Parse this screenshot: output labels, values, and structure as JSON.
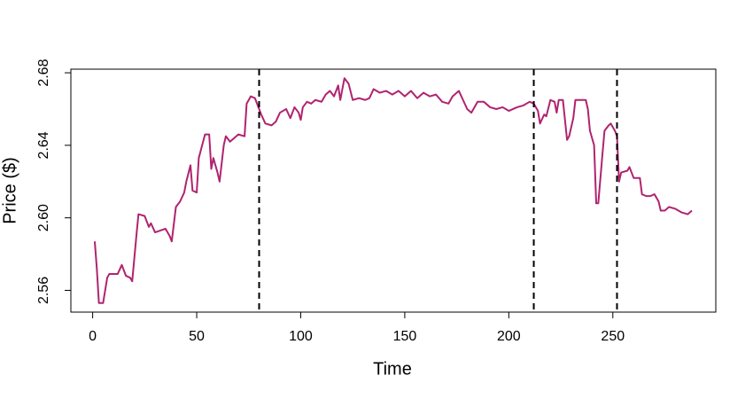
{
  "chart_data": {
    "type": "line",
    "xlabel": "Time",
    "ylabel": "Price ($)",
    "x": [
      1,
      2,
      3,
      5,
      7,
      8,
      12,
      14,
      16,
      18,
      19,
      21,
      22,
      25,
      27,
      28,
      30,
      35,
      37,
      38,
      40,
      42,
      44,
      45,
      47,
      48,
      50,
      51,
      54,
      56,
      57,
      58,
      60,
      61,
      63,
      64,
      66,
      68,
      70,
      73,
      74,
      76,
      78,
      80,
      81,
      83,
      86,
      88,
      90,
      93,
      95,
      97,
      99,
      100,
      101,
      103,
      105,
      107,
      110,
      112,
      114,
      116,
      118,
      119,
      121,
      123,
      125,
      128,
      131,
      133,
      135,
      138,
      141,
      144,
      147,
      150,
      153,
      156,
      159,
      162,
      165,
      168,
      171,
      173,
      176,
      178,
      180,
      182,
      185,
      188,
      191,
      194,
      197,
      200,
      204,
      207,
      210,
      212,
      214,
      215,
      217,
      218,
      220,
      222,
      223,
      224,
      226,
      228,
      229,
      231,
      232,
      237,
      238,
      239,
      241,
      242,
      243,
      245,
      246,
      248,
      249,
      251,
      252,
      253,
      254,
      257,
      258,
      260,
      263,
      264,
      266,
      268,
      270,
      271,
      272,
      273,
      275,
      277,
      280,
      283,
      286,
      288
    ],
    "values": [
      2.587,
      2.572,
      2.553,
      2.553,
      2.567,
      2.569,
      2.569,
      2.574,
      2.568,
      2.567,
      2.565,
      2.59,
      2.602,
      2.601,
      2.595,
      2.597,
      2.592,
      2.594,
      2.59,
      2.587,
      2.606,
      2.609,
      2.614,
      2.62,
      2.629,
      2.615,
      2.614,
      2.633,
      2.646,
      2.646,
      2.627,
      2.633,
      2.625,
      2.62,
      2.64,
      2.645,
      2.642,
      2.644,
      2.646,
      2.645,
      2.663,
      2.667,
      2.666,
      2.66,
      2.657,
      2.652,
      2.651,
      2.653,
      2.658,
      2.66,
      2.655,
      2.661,
      2.658,
      2.654,
      2.661,
      2.664,
      2.663,
      2.665,
      2.664,
      2.668,
      2.67,
      2.667,
      2.673,
      2.665,
      2.677,
      2.674,
      2.665,
      2.666,
      2.665,
      2.666,
      2.671,
      2.669,
      2.67,
      2.668,
      2.67,
      2.667,
      2.67,
      2.666,
      2.669,
      2.667,
      2.668,
      2.664,
      2.663,
      2.667,
      2.67,
      2.665,
      2.66,
      2.658,
      2.664,
      2.664,
      2.661,
      2.66,
      2.661,
      2.659,
      2.661,
      2.662,
      2.664,
      2.663,
      2.659,
      2.652,
      2.657,
      2.656,
      2.665,
      2.664,
      2.658,
      2.665,
      2.665,
      2.643,
      2.645,
      2.655,
      2.665,
      2.665,
      2.66,
      2.648,
      2.64,
      2.608,
      2.608,
      2.635,
      2.648,
      2.651,
      2.652,
      2.648,
      2.645,
      2.62,
      2.625,
      2.626,
      2.628,
      2.622,
      2.622,
      2.613,
      2.612,
      2.612,
      2.613,
      2.611,
      2.609,
      2.604,
      2.604,
      2.606,
      2.605,
      2.603,
      2.602,
      2.604
    ],
    "color": "#b0236f",
    "vlines": [
      80,
      212,
      252
    ],
    "xlim": [
      -10.48,
      299.48
    ],
    "xticks": [
      0,
      50,
      100,
      150,
      200,
      250
    ],
    "ylim": [
      2.548,
      2.682
    ],
    "yticks": [
      2.56,
      {
        "value": 2.6,
        "label": "2.60"
      },
      2.64,
      2.68
    ]
  }
}
